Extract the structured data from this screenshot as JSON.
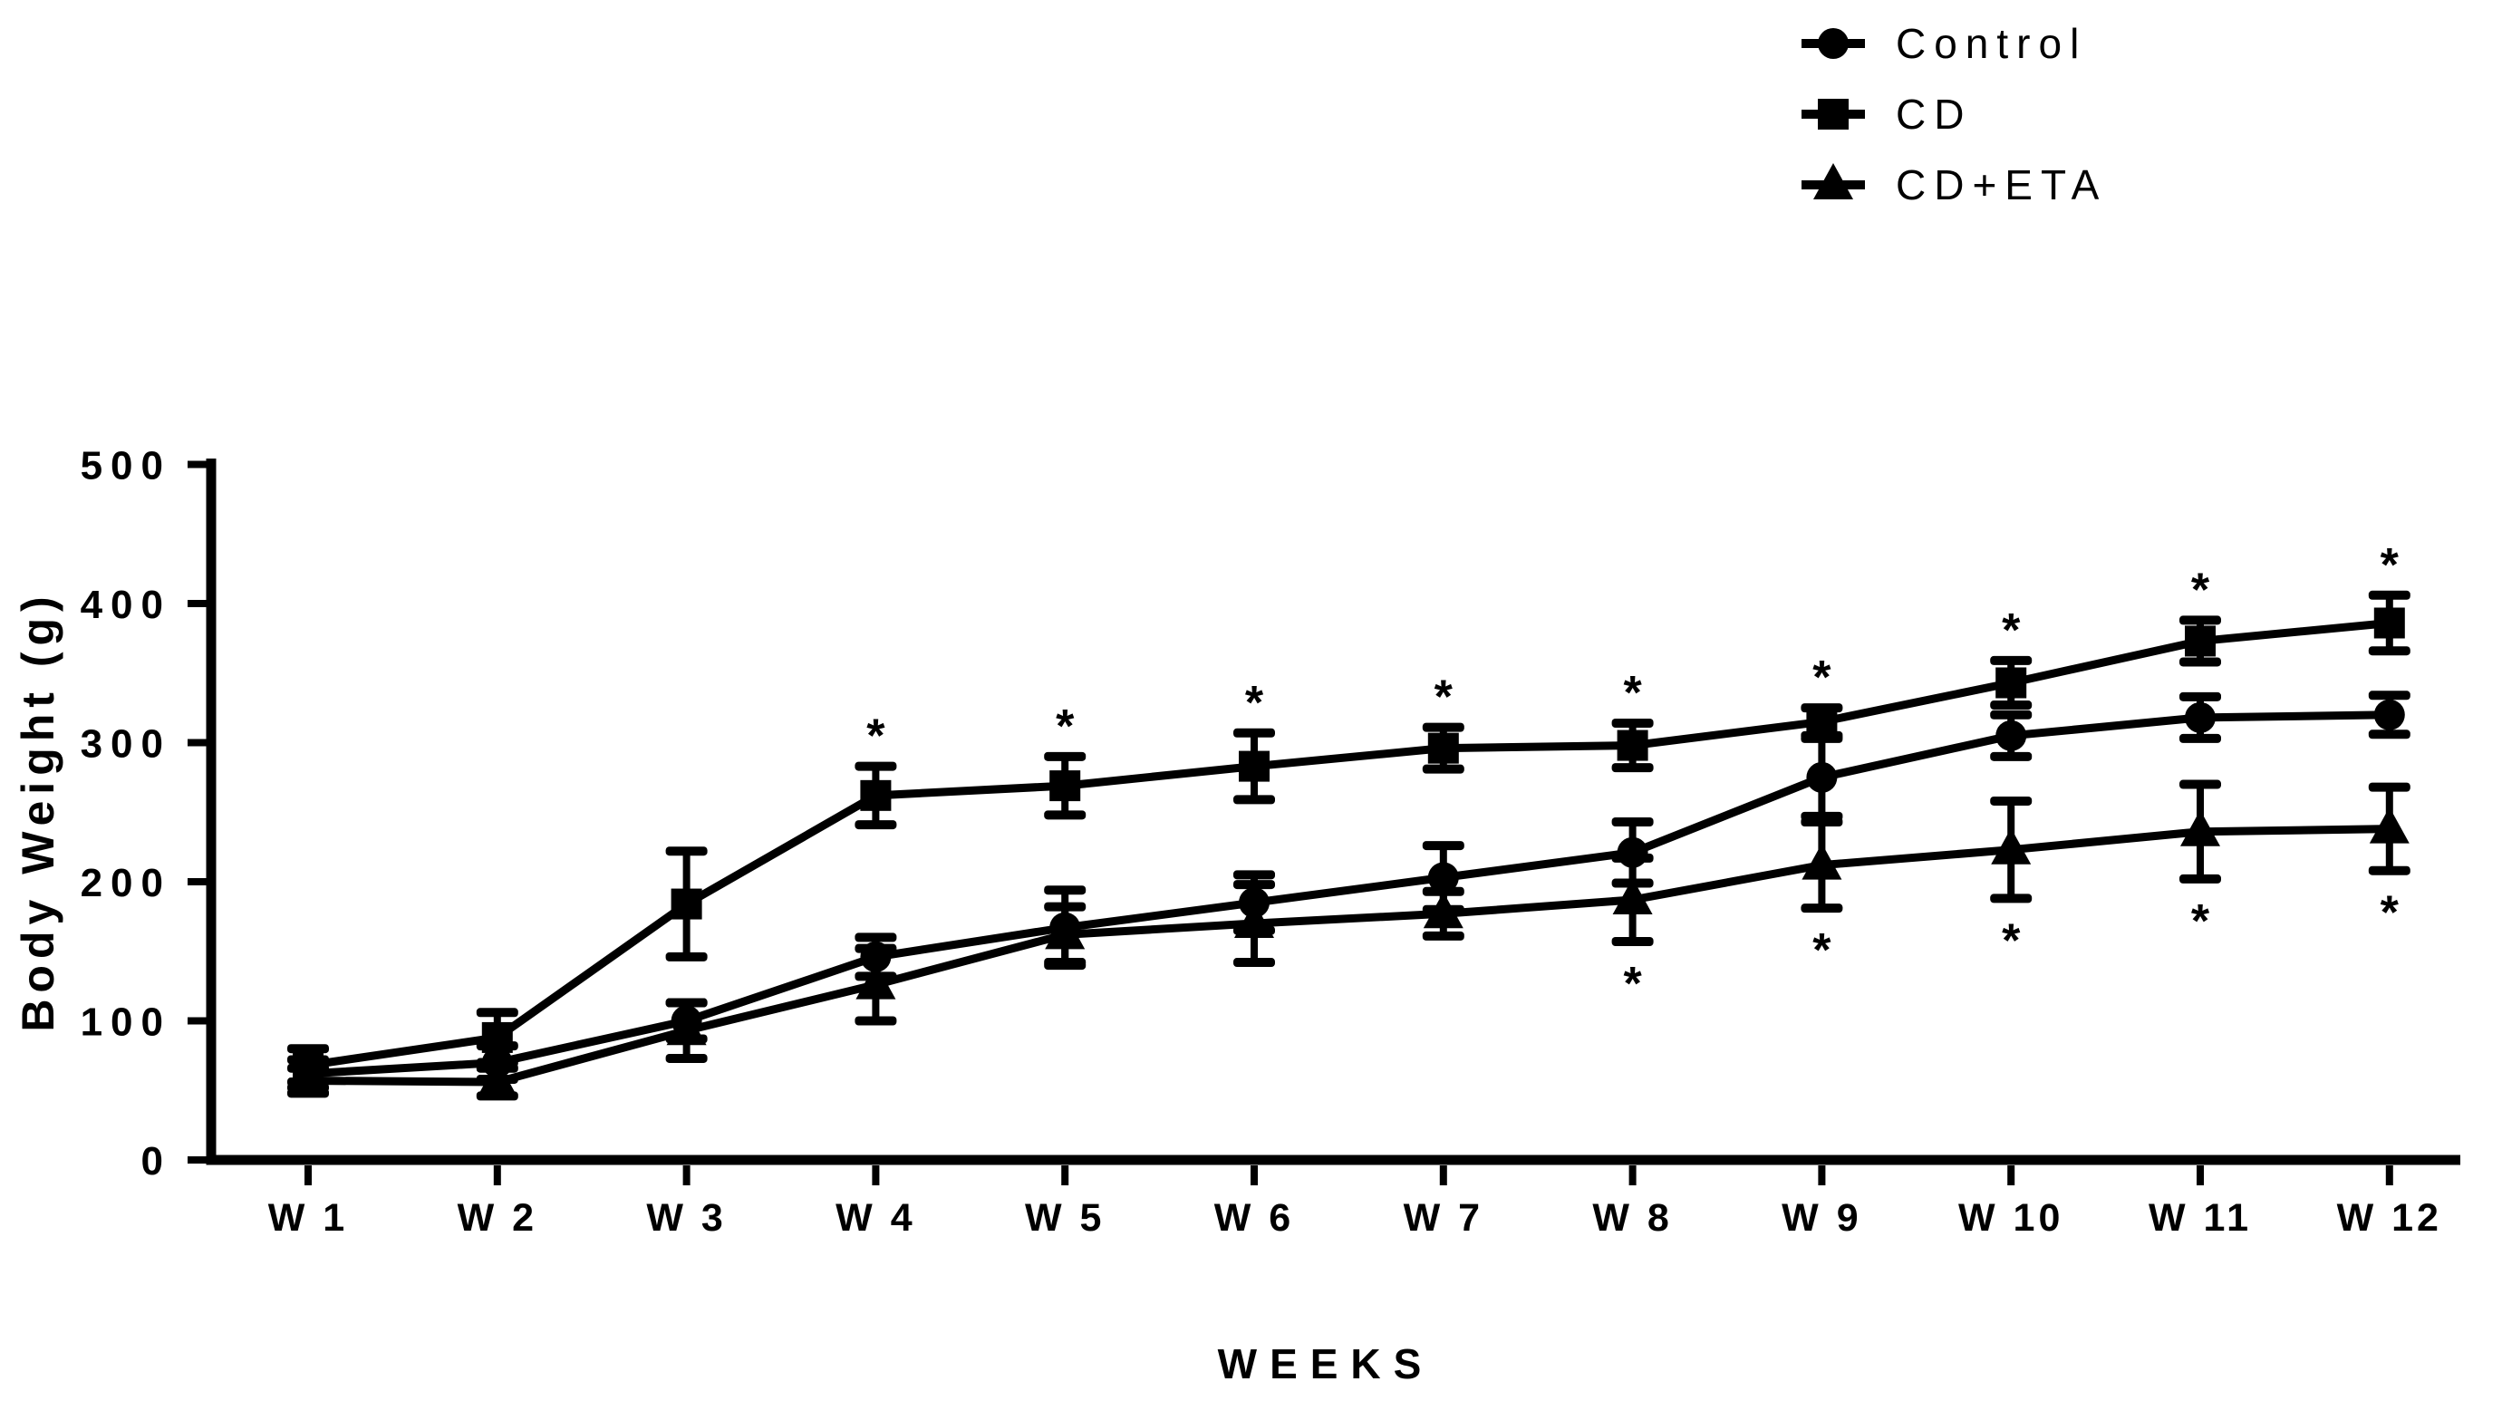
{
  "chart_data": {
    "type": "line",
    "title": "",
    "xlabel": "WEEKS",
    "ylabel": "Body Weight (g)",
    "x_tick_labels": [
      "W 1",
      "W 2",
      "W 3",
      "W 4",
      "W 5",
      "W 6",
      "W 7",
      "W 8",
      "W 9",
      "W 10",
      "W 11",
      "W 12"
    ],
    "y_ticks": [
      500,
      400,
      300,
      200,
      100,
      0
    ],
    "ylim": [
      0,
      500
    ],
    "grid": false,
    "legend_position": "top-right",
    "background_color": "#ffffff",
    "ink_color": "#000000",
    "significance_symbol": "*",
    "error_bar_style": "plus-minus, capped",
    "series": [
      {
        "name": "Control",
        "marker": "circle",
        "values": [
          62,
          70,
          100,
          146,
          167,
          185,
          203,
          221,
          275,
          305,
          318,
          320
        ],
        "errors": [
          10,
          12,
          13,
          14,
          27,
          20,
          23,
          22,
          28,
          15,
          15,
          14
        ],
        "significant_weeks_above": [],
        "significant_weeks_below": []
      },
      {
        "name": "CD",
        "marker": "square",
        "values": [
          68,
          88,
          184,
          262,
          269,
          283,
          296,
          298,
          315,
          343,
          373,
          386
        ],
        "errors": [
          12,
          18,
          38,
          21,
          21,
          24,
          15,
          16,
          10,
          16,
          15,
          20
        ],
        "significant_weeks_above": [
          4,
          5,
          6,
          7,
          8,
          9,
          10,
          11,
          12
        ],
        "significant_weeks_below": []
      },
      {
        "name": "CD+ETA",
        "marker": "triangle",
        "values": [
          57,
          56,
          93,
          126,
          162,
          170,
          177,
          187,
          212,
          223,
          236,
          238
        ],
        "errors": [
          9,
          10,
          20,
          26,
          20,
          28,
          16,
          30,
          31,
          35,
          34,
          30
        ],
        "significant_weeks_above": [],
        "significant_weeks_below": [
          8,
          9,
          10,
          11,
          12
        ]
      }
    ]
  }
}
